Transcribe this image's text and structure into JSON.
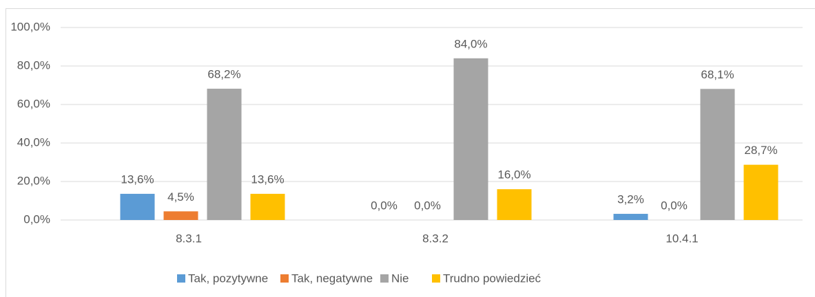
{
  "chart_data": {
    "type": "bar",
    "categories": [
      "8.3.1",
      "8.3.2",
      "10.4.1"
    ],
    "series": [
      {
        "name": "Tak, pozytywne",
        "color": "#5b9bd5",
        "values": [
          13.6,
          0,
          3.2
        ],
        "value_labels": [
          "13,6%",
          "0,0%",
          "3,2%"
        ]
      },
      {
        "name": "Tak, negatywne",
        "color": "#ed7d31",
        "values": [
          4.5,
          0,
          0
        ],
        "value_labels": [
          "4,5%",
          "0,0%",
          "0,0%"
        ]
      },
      {
        "name": "Nie",
        "color": "#a5a5a5",
        "values": [
          68.2,
          84.0,
          68.1
        ],
        "value_labels": [
          "68,2%",
          "84,0%",
          "68,1%"
        ]
      },
      {
        "name": "Trudno powiedzieć",
        "color": "#ffc000",
        "values": [
          13.6,
          16.0,
          28.7
        ],
        "value_labels": [
          "13,6%",
          "16,0%",
          "28,7%"
        ]
      }
    ],
    "ylim": [
      0,
      100
    ],
    "yticks": [
      {
        "value": 0,
        "label": "0,0%"
      },
      {
        "value": 20,
        "label": "20,0%"
      },
      {
        "value": 40,
        "label": "40,0%"
      },
      {
        "value": 60,
        "label": "60,0%"
      },
      {
        "value": 80,
        "label": "80,0%"
      },
      {
        "value": 100,
        "label": "100,0%"
      }
    ],
    "grid": true,
    "legend": "bottom"
  }
}
